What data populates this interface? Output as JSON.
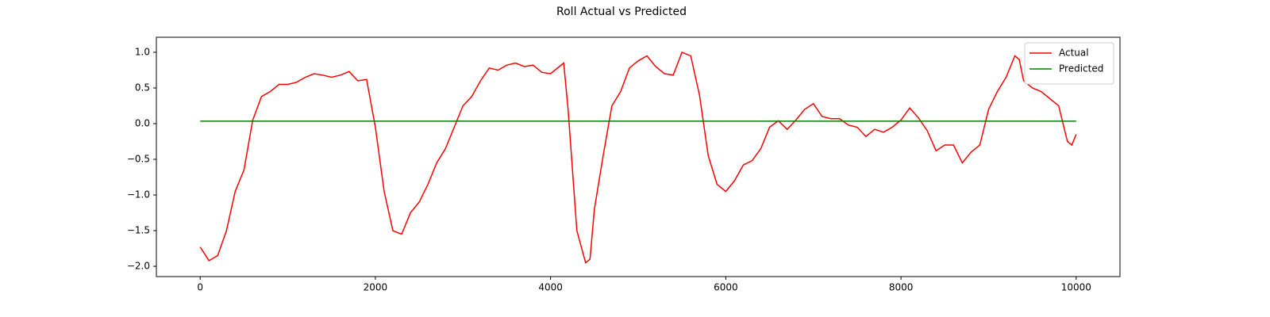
{
  "chart_data": {
    "type": "line",
    "title": "Roll Actual vs Predicted",
    "xlim": [
      -500,
      10500
    ],
    "xticks": [
      0,
      2000,
      4000,
      6000,
      8000,
      10000
    ],
    "ylim": [
      -2.144,
      1.211
    ],
    "yticks": [
      {
        "value": -2.0,
        "label": "−2.0"
      },
      {
        "value": -1.5,
        "label": "−1.5"
      },
      {
        "value": -1.0,
        "label": "−1.0"
      },
      {
        "value": -0.5,
        "label": "−0.5"
      },
      {
        "value": 0.0,
        "label": "0.0"
      },
      {
        "value": 0.5,
        "label": "0.5"
      },
      {
        "value": 1.0,
        "label": "1.0"
      }
    ],
    "legend": "upper right",
    "series": [
      {
        "name": "Actual",
        "color": "#ff0000",
        "x": [
          0,
          100,
          200,
          300,
          400,
          500,
          600,
          700,
          800,
          900,
          1000,
          1100,
          1200,
          1300,
          1400,
          1500,
          1600,
          1700,
          1800,
          1900,
          2000,
          2100,
          2200,
          2300,
          2400,
          2500,
          2600,
          2700,
          2800,
          2900,
          3000,
          3100,
          3200,
          3300,
          3400,
          3500,
          3600,
          3700,
          3800,
          3900,
          4000,
          4100,
          4150,
          4200,
          4300,
          4400,
          4450,
          4500,
          4600,
          4700,
          4800,
          4900,
          5000,
          5100,
          5200,
          5300,
          5400,
          5500,
          5600,
          5700,
          5800,
          5900,
          6000,
          6100,
          6200,
          6300,
          6400,
          6500,
          6600,
          6700,
          6800,
          6900,
          7000,
          7100,
          7200,
          7300,
          7400,
          7500,
          7600,
          7700,
          7800,
          7900,
          8000,
          8100,
          8200,
          8300,
          8400,
          8500,
          8600,
          8700,
          8800,
          8900,
          9000,
          9100,
          9200,
          9300,
          9350,
          9400,
          9500,
          9600,
          9700,
          9800,
          9900,
          9950,
          10000
        ],
        "values": [
          -1.73,
          -1.92,
          -1.85,
          -1.5,
          -0.95,
          -0.65,
          0.05,
          0.38,
          0.45,
          0.55,
          0.55,
          0.58,
          0.65,
          0.7,
          0.68,
          0.65,
          0.68,
          0.73,
          0.6,
          0.62,
          -0.05,
          -0.95,
          -1.5,
          -1.55,
          -1.25,
          -1.1,
          -0.85,
          -0.55,
          -0.35,
          -0.05,
          0.25,
          0.38,
          0.6,
          0.78,
          0.75,
          0.82,
          0.85,
          0.8,
          0.82,
          0.72,
          0.7,
          0.8,
          0.85,
          0.2,
          -1.5,
          -1.95,
          -1.9,
          -1.2,
          -0.45,
          0.25,
          0.45,
          0.78,
          0.88,
          0.95,
          0.8,
          0.7,
          0.68,
          1.0,
          0.95,
          0.4,
          -0.45,
          -0.85,
          -0.95,
          -0.8,
          -0.58,
          -0.52,
          -0.35,
          -0.05,
          0.04,
          -0.08,
          0.05,
          0.2,
          0.28,
          0.1,
          0.07,
          0.07,
          -0.02,
          -0.05,
          -0.18,
          -0.08,
          -0.12,
          -0.05,
          0.05,
          0.22,
          0.08,
          -0.1,
          -0.38,
          -0.3,
          -0.3,
          -0.55,
          -0.4,
          -0.3,
          0.2,
          0.45,
          0.65,
          0.95,
          0.9,
          0.6,
          0.5,
          0.45,
          0.35,
          0.25,
          -0.25,
          -0.3,
          -0.15
        ]
      },
      {
        "name": "Predicted",
        "color": "#008000",
        "x": [
          0,
          10000
        ],
        "values": [
          0.035,
          0.035
        ]
      }
    ]
  }
}
